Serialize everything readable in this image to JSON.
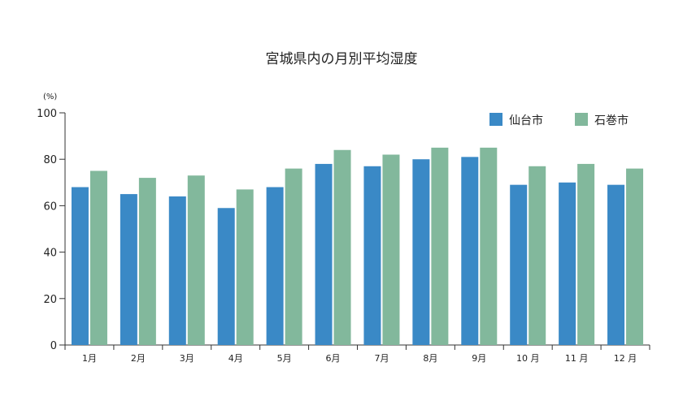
{
  "chart_data": {
    "type": "bar",
    "title": "宮城県内の月別平均湿度",
    "ylabel": "(%)",
    "xlabel": "",
    "ylim": [
      0,
      100
    ],
    "yticks": [
      0,
      20,
      40,
      60,
      80,
      100
    ],
    "categories": [
      "1月",
      "2月",
      "3月",
      "4月",
      "5月",
      "6月",
      "7月",
      "8月",
      "9月",
      "10 月",
      "11 月",
      "12 月"
    ],
    "series": [
      {
        "name": "仙台市",
        "color": "#3a89c6",
        "values": [
          68,
          65,
          64,
          59,
          68,
          78,
          77,
          80,
          81,
          69,
          70,
          69
        ]
      },
      {
        "name": "石巻市",
        "color": "#82b89c",
        "values": [
          75,
          72,
          73,
          67,
          76,
          84,
          82,
          85,
          85,
          77,
          78,
          76
        ]
      }
    ],
    "grid": false,
    "legend_position": "top-right"
  }
}
